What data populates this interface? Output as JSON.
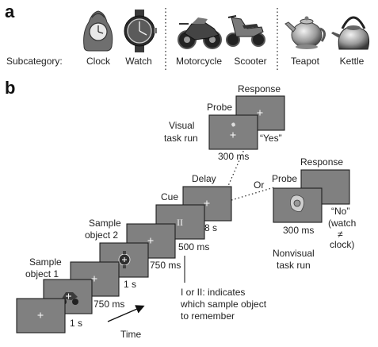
{
  "panel_a": {
    "letter": "a",
    "subcategory_label": "Subcategory:",
    "objects": [
      {
        "label": "Clock",
        "icon": "clock-icon"
      },
      {
        "label": "Watch",
        "icon": "watch-icon"
      },
      {
        "label": "Motorcycle",
        "icon": "motorcycle-icon"
      },
      {
        "label": "Scooter",
        "icon": "scooter-icon"
      },
      {
        "label": "Teapot",
        "icon": "teapot-icon"
      },
      {
        "label": "Kettle",
        "icon": "kettle-icon"
      }
    ]
  },
  "panel_b": {
    "letter": "b",
    "stages": {
      "sample1": {
        "label_line1": "Sample",
        "label_line2": "object 1",
        "duration": "1 s"
      },
      "fixation1": {
        "duration": "750 ms"
      },
      "sample2": {
        "label_line1": "Sample",
        "label_line2": "object 2",
        "duration": "1 s"
      },
      "fixation2": {
        "duration": "750 ms"
      },
      "cue": {
        "label": "Cue",
        "symbol": "II",
        "duration": "500 ms"
      },
      "delay": {
        "label": "Delay",
        "duration": "8 s"
      }
    },
    "or_label": "Or",
    "visual_run": {
      "title_line1": "Visual",
      "title_line2": "task run",
      "probe_label": "Probe",
      "response_label": "Response",
      "probe_duration": "300 ms",
      "answer": "“Yes”"
    },
    "nonvisual_run": {
      "title_line1": "Nonvisual",
      "title_line2": "task run",
      "probe_label": "Probe",
      "response_label": "Response",
      "probe_duration": "300 ms",
      "answer_lines": [
        "“No”",
        "(watch",
        "≠",
        "clock)"
      ]
    },
    "cue_note_lines": [
      "I or II: indicates",
      "which sample object",
      "to remember"
    ],
    "time_label": "Time"
  }
}
